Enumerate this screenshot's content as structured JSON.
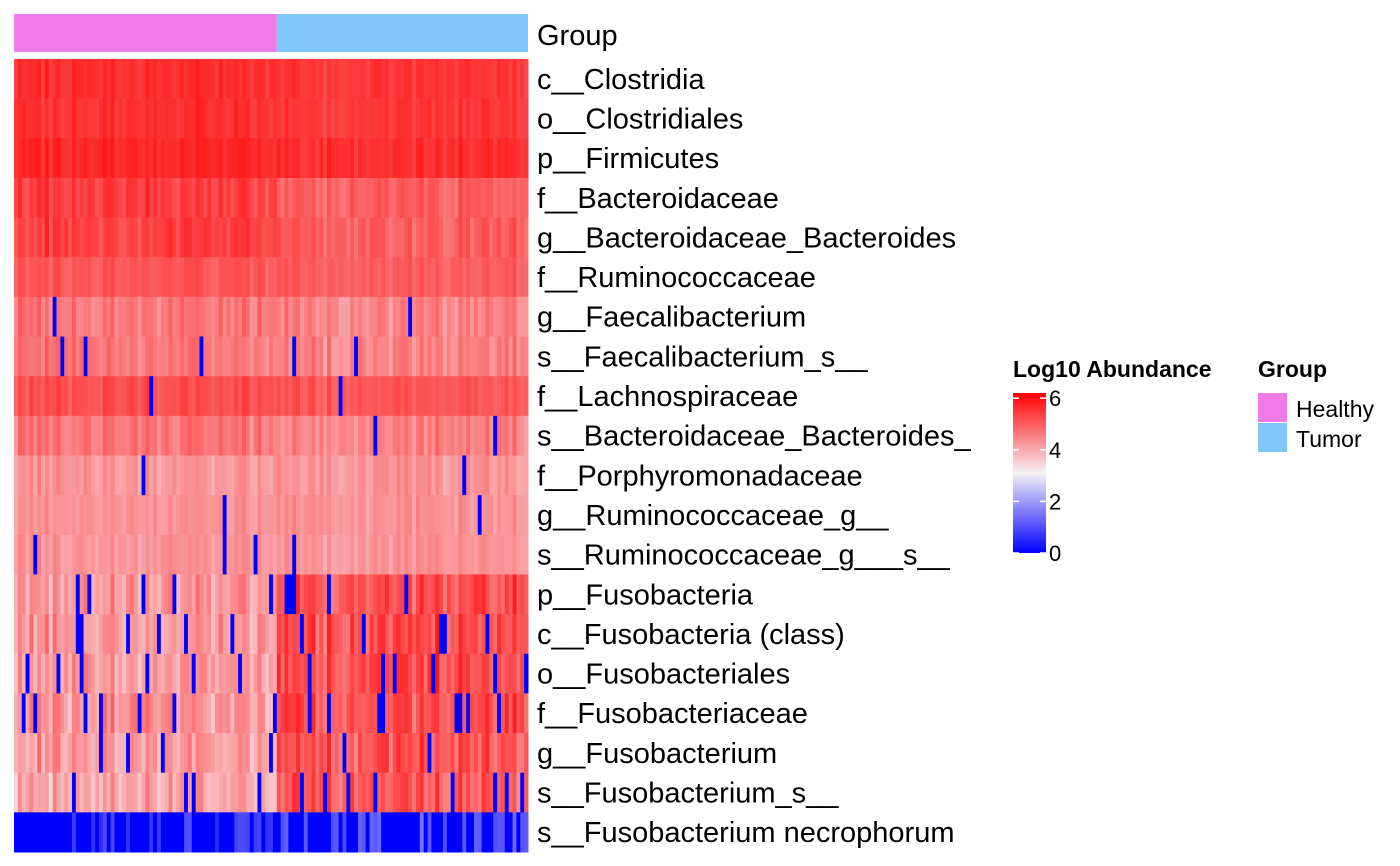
{
  "chart_data": {
    "type": "heatmap",
    "annotation_label": "Group",
    "groups": [
      {
        "name": "Healthy",
        "color": "#EE7BE8",
        "samples": 68
      },
      {
        "name": "Tumor",
        "color": "#80C8FA",
        "samples": 65
      }
    ],
    "rows": [
      {
        "label": "c__Clostridia",
        "level": 5.6,
        "spread": 0.25,
        "healthy_level": 5.6,
        "tumor_level": 5.5,
        "zero_rate": 0.0
      },
      {
        "label": "o__Clostridiales",
        "level": 5.6,
        "spread": 0.25,
        "healthy_level": 5.6,
        "tumor_level": 5.5,
        "zero_rate": 0.0
      },
      {
        "label": "p__Firmicutes",
        "level": 5.7,
        "spread": 0.25,
        "healthy_level": 5.7,
        "tumor_level": 5.6,
        "zero_rate": 0.0
      },
      {
        "label": "f__Bacteroidaceae",
        "level": 5.2,
        "spread": 0.4,
        "healthy_level": 5.4,
        "tumor_level": 5.0,
        "zero_rate": 0.0
      },
      {
        "label": "g__Bacteroidaceae_Bacteroides",
        "level": 5.2,
        "spread": 0.4,
        "healthy_level": 5.4,
        "tumor_level": 5.0,
        "zero_rate": 0.0
      },
      {
        "label": "f__Ruminococcaceae",
        "level": 5.1,
        "spread": 0.25,
        "healthy_level": 5.1,
        "tumor_level": 5.0,
        "zero_rate": 0.0
      },
      {
        "label": "g__Faecalibacterium",
        "level": 4.6,
        "spread": 0.45,
        "healthy_level": 4.7,
        "tumor_level": 4.5,
        "zero_rate": 0.03
      },
      {
        "label": "s__Faecalibacterium_s__",
        "level": 4.6,
        "spread": 0.45,
        "healthy_level": 4.7,
        "tumor_level": 4.5,
        "zero_rate": 0.03
      },
      {
        "label": "f__Lachnospiraceae",
        "level": 5.2,
        "spread": 0.3,
        "healthy_level": 5.2,
        "tumor_level": 5.1,
        "zero_rate": 0.01
      },
      {
        "label": "s__Bacteroidaceae_Bacteroides_",
        "level": 4.6,
        "spread": 0.45,
        "healthy_level": 4.7,
        "tumor_level": 4.5,
        "zero_rate": 0.02
      },
      {
        "label": "f__Porphyromonadaceae",
        "level": 4.3,
        "spread": 0.35,
        "healthy_level": 4.3,
        "tumor_level": 4.3,
        "zero_rate": 0.02
      },
      {
        "label": "g__Ruminococcaceae_g__",
        "level": 4.3,
        "spread": 0.3,
        "healthy_level": 4.3,
        "tumor_level": 4.3,
        "zero_rate": 0.02
      },
      {
        "label": "s__Ruminococcaceae_g___s__",
        "level": 4.3,
        "spread": 0.3,
        "healthy_level": 4.3,
        "tumor_level": 4.3,
        "zero_rate": 0.02
      },
      {
        "label": "p__Fusobacteria",
        "level": 4.8,
        "spread": 0.7,
        "healthy_level": 4.3,
        "tumor_level": 5.2,
        "zero_rate": 0.08
      },
      {
        "label": "c__Fusobacteria (class)",
        "level": 4.8,
        "spread": 0.7,
        "healthy_level": 4.3,
        "tumor_level": 5.2,
        "zero_rate": 0.08
      },
      {
        "label": "o__Fusobacteriales",
        "level": 4.8,
        "spread": 0.7,
        "healthy_level": 4.3,
        "tumor_level": 5.2,
        "zero_rate": 0.08
      },
      {
        "label": "f__Fusobacteriaceae",
        "level": 4.8,
        "spread": 0.7,
        "healthy_level": 4.3,
        "tumor_level": 5.2,
        "zero_rate": 0.08
      },
      {
        "label": "g__Fusobacterium",
        "level": 4.7,
        "spread": 0.7,
        "healthy_level": 4.2,
        "tumor_level": 5.1,
        "zero_rate": 0.08
      },
      {
        "label": "s__Fusobacterium_s__",
        "level": 4.6,
        "spread": 0.7,
        "healthy_level": 4.1,
        "tumor_level": 5.0,
        "zero_rate": 0.09
      },
      {
        "label": "s__Fusobacterium necrophorum",
        "level": 1.0,
        "spread": 0.3,
        "healthy_level": 0.8,
        "tumor_level": 1.2,
        "zero_rate": 0.72
      }
    ],
    "color_scale": {
      "title": "Log10 Abundance",
      "min": 0,
      "max": 6.2,
      "stops": [
        {
          "value": 0,
          "color": "#0000FF"
        },
        {
          "value": 3.1,
          "color": "#F5F0F5"
        },
        {
          "value": 6.2,
          "color": "#FF0000"
        }
      ],
      "ticks": [
        "0",
        "2",
        "4",
        "6"
      ],
      "tick_values": [
        0,
        2,
        4,
        6
      ]
    },
    "group_legend": {
      "title": "Group",
      "items": [
        {
          "label": "Healthy",
          "color": "#EE7BE8"
        },
        {
          "label": "Tumor",
          "color": "#80C8FA"
        }
      ]
    }
  }
}
